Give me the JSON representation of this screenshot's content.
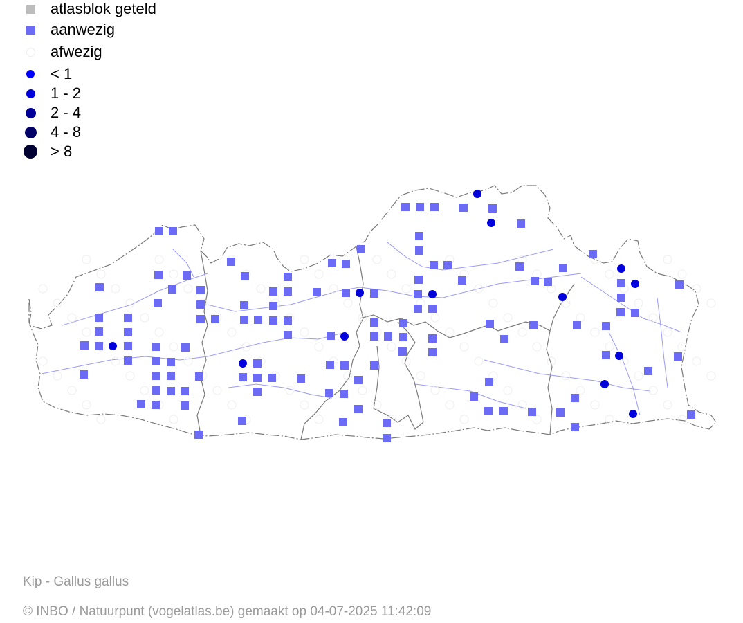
{
  "legend": {
    "items": [
      {
        "label": "atlasblok geteld",
        "symbol": "square",
        "color": "#bdbdbd"
      },
      {
        "label": "aanwezig",
        "symbol": "square",
        "color": "#6b6bf5"
      },
      {
        "label": "afwezig",
        "symbol": "open-circle",
        "color": "#eeeeee"
      },
      {
        "label": "< 1",
        "symbol": "dot",
        "color": "#0000ff"
      },
      {
        "label": "1 - 2",
        "symbol": "dot",
        "color": "#0000dd"
      },
      {
        "label": "2 - 4",
        "symbol": "dot",
        "color": "#000099"
      },
      {
        "label": "4 - 8",
        "symbol": "dot",
        "color": "#000066"
      },
      {
        "label": "> 8",
        "symbol": "dot",
        "color": "#000033"
      }
    ]
  },
  "map": {
    "region": "Vlaanderen",
    "border_color": "#7a7a7a",
    "river_color": "#9a9af5",
    "present_color": "#6b6bf5",
    "density_color": "#0000dd"
  },
  "caption": {
    "species": "Kip - Gallus gallus",
    "credit": "© INBO / Natuurpunt (vogelatlas.be) gemaakt op 04-07-2025 11:42:09"
  }
}
